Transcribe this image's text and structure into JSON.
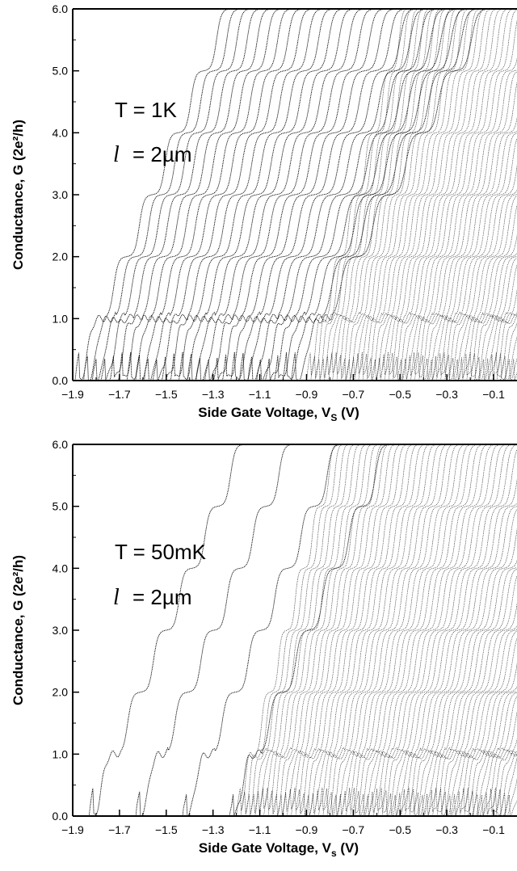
{
  "chart_data": [
    {
      "type": "line",
      "panel": "top",
      "xlabel": "Side Gate Voltage, V",
      "xlabel_sub": "S",
      "xlabel_unit": " (V)",
      "ylabel": "Conductance, G (2e²/h)",
      "xlim": [
        -1.9,
        0.0
      ],
      "ylim": [
        0.0,
        6.0
      ],
      "x_ticks": [
        "−1.9",
        "−1.7",
        "−1.5",
        "−1.3",
        "−1.1",
        "−0.9",
        "−0.7",
        "−0.5",
        "−0.3",
        "−0.1"
      ],
      "y_ticks": [
        "0.0",
        "1.0",
        "2.0",
        "3.0",
        "4.0",
        "5.0",
        "6.0"
      ],
      "annotations": {
        "temperature": "T = 1K",
        "length": "= 2µm",
        "length_symbol": "l"
      },
      "plateaus": [
        1,
        2,
        3,
        4,
        5,
        6
      ],
      "series_groups": [
        {
          "group": "sparse",
          "count": 26,
          "onset_start": -1.89,
          "onset_step": 0.037
        },
        {
          "group": "dense",
          "count": 48,
          "onset_start": -0.9,
          "onset_step": 0.0185
        }
      ]
    },
    {
      "type": "line",
      "panel": "bottom",
      "xlabel": "Side Gate Voltage, V",
      "xlabel_sub": "s",
      "xlabel_unit": " (V)",
      "ylabel": "Conductance, G (2e²/h)",
      "xlim": [
        -1.9,
        0.0
      ],
      "ylim": [
        0.0,
        6.0
      ],
      "x_ticks": [
        "−1.9",
        "−1.7",
        "−1.5",
        "−1.3",
        "−1.1",
        "−0.9",
        "−0.7",
        "−0.5",
        "−0.3",
        "−0.1"
      ],
      "y_ticks": [
        "0.0",
        "1.0",
        "2.0",
        "3.0",
        "4.0",
        "5.0",
        "6.0"
      ],
      "annotations": {
        "temperature": "T = 50mK",
        "length": "= 2µm",
        "length_symbol": "l"
      },
      "plateaus": [
        1,
        2,
        3,
        4,
        5,
        6
      ],
      "series_groups": [
        {
          "group": "sparse",
          "count": 4,
          "onset_start": -1.83,
          "onset_step": 0.2
        },
        {
          "group": "dense",
          "count": 60,
          "onset_start": -1.2,
          "onset_step": 0.0195
        }
      ]
    }
  ]
}
